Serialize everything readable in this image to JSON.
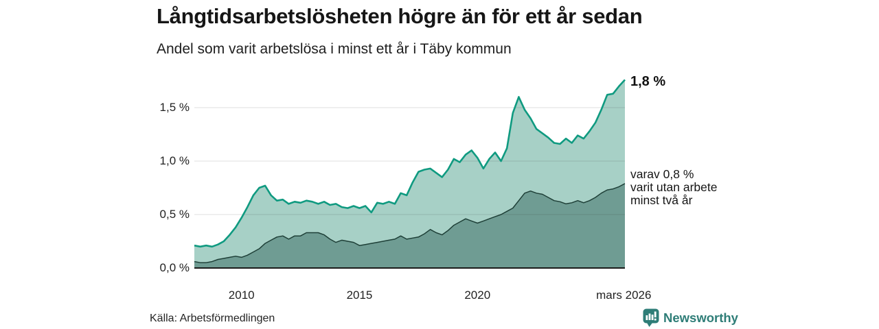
{
  "header": {
    "title": "Långtidsarbetslösheten högre än för ett år sedan",
    "subtitle": "Andel som varit arbetslösa i minst ett år i Täby kommun"
  },
  "chart_data": {
    "type": "area",
    "title": "Långtidsarbetslösheten högre än för ett år sedan",
    "subtitle": "Andel som varit arbetslösa i minst ett år i Täby kommun",
    "unit": "%",
    "grid": "horizontal",
    "legend_position": "none",
    "xlim": [
      2008,
      2026.25
    ],
    "ylim": [
      0,
      1.85
    ],
    "x": [
      2008,
      2008.25,
      2008.5,
      2008.75,
      2009,
      2009.25,
      2009.5,
      2009.75,
      2010,
      2010.25,
      2010.5,
      2010.75,
      2011,
      2011.25,
      2011.5,
      2011.75,
      2012,
      2012.25,
      2012.5,
      2012.75,
      2013,
      2013.25,
      2013.5,
      2013.75,
      2014,
      2014.25,
      2014.5,
      2014.75,
      2015,
      2015.25,
      2015.5,
      2015.75,
      2016,
      2016.25,
      2016.5,
      2016.75,
      2017,
      2017.25,
      2017.5,
      2017.75,
      2018,
      2018.25,
      2018.5,
      2018.75,
      2019,
      2019.25,
      2019.5,
      2019.75,
      2020,
      2020.25,
      2020.5,
      2020.75,
      2021,
      2021.25,
      2021.5,
      2021.75,
      2022,
      2022.25,
      2022.5,
      2022.75,
      2023,
      2023.25,
      2023.5,
      2023.75,
      2024,
      2024.25,
      2024.5,
      2024.75,
      2025,
      2025.25,
      2025.5,
      2025.75,
      2026,
      2026.25
    ],
    "series": [
      {
        "name": "Andel arbetslösa minst ett år",
        "line_color": "#0f9a80",
        "fill_color": "#a7d0c6",
        "line_width": 2.6,
        "values": [
          0.21,
          0.2,
          0.21,
          0.2,
          0.22,
          0.25,
          0.31,
          0.38,
          0.47,
          0.57,
          0.68,
          0.75,
          0.77,
          0.68,
          0.63,
          0.64,
          0.6,
          0.62,
          0.61,
          0.63,
          0.62,
          0.6,
          0.62,
          0.59,
          0.6,
          0.57,
          0.56,
          0.58,
          0.56,
          0.58,
          0.52,
          0.61,
          0.6,
          0.62,
          0.6,
          0.7,
          0.68,
          0.8,
          0.9,
          0.92,
          0.93,
          0.89,
          0.85,
          0.92,
          1.02,
          0.99,
          1.06,
          1.1,
          1.03,
          0.93,
          1.02,
          1.08,
          1.0,
          1.12,
          1.45,
          1.6,
          1.48,
          1.4,
          1.3,
          1.26,
          1.22,
          1.17,
          1.16,
          1.21,
          1.17,
          1.24,
          1.21,
          1.28,
          1.36,
          1.48,
          1.62,
          1.63,
          1.7,
          1.76
        ]
      },
      {
        "name": "Andel som varit utan arbete minst två år",
        "line_color": "#1e3f37",
        "fill_color": "#6f9c93",
        "line_width": 1.5,
        "values": [
          0.06,
          0.05,
          0.05,
          0.06,
          0.08,
          0.09,
          0.1,
          0.11,
          0.1,
          0.12,
          0.15,
          0.18,
          0.23,
          0.26,
          0.29,
          0.3,
          0.27,
          0.3,
          0.3,
          0.33,
          0.33,
          0.33,
          0.31,
          0.27,
          0.24,
          0.26,
          0.25,
          0.24,
          0.21,
          0.22,
          0.23,
          0.24,
          0.25,
          0.26,
          0.27,
          0.3,
          0.27,
          0.28,
          0.29,
          0.32,
          0.36,
          0.33,
          0.31,
          0.35,
          0.4,
          0.43,
          0.46,
          0.44,
          0.42,
          0.44,
          0.46,
          0.48,
          0.5,
          0.53,
          0.56,
          0.63,
          0.7,
          0.72,
          0.7,
          0.69,
          0.66,
          0.63,
          0.62,
          0.6,
          0.61,
          0.63,
          0.61,
          0.63,
          0.66,
          0.7,
          0.73,
          0.74,
          0.76,
          0.79
        ]
      }
    ],
    "yticks": [
      {
        "value": 0.0,
        "label": "0,0 %"
      },
      {
        "value": 0.5,
        "label": "0,5 %"
      },
      {
        "value": 1.0,
        "label": "1,0 %"
      },
      {
        "value": 1.5,
        "label": "1,5 %"
      }
    ],
    "xticks": [
      {
        "value": 2010,
        "label": "2010"
      },
      {
        "value": 2015,
        "label": "2015"
      },
      {
        "value": 2020,
        "label": "2020"
      },
      {
        "value": 2026.2,
        "label": "mars 2026"
      }
    ],
    "annotations": {
      "latest_value": "1,8 %",
      "series2_lines": [
        "varav 0,8 %",
        "varit utan arbete",
        "minst två år"
      ]
    },
    "colors": {
      "grid": "rgba(30,30,30,0.14)",
      "axis_line": "#1b1b1b",
      "brand_teal": "#2e7d77"
    }
  },
  "footer": {
    "source": "Källa: Arbetsförmedlingen",
    "brand": "Newsworthy"
  }
}
